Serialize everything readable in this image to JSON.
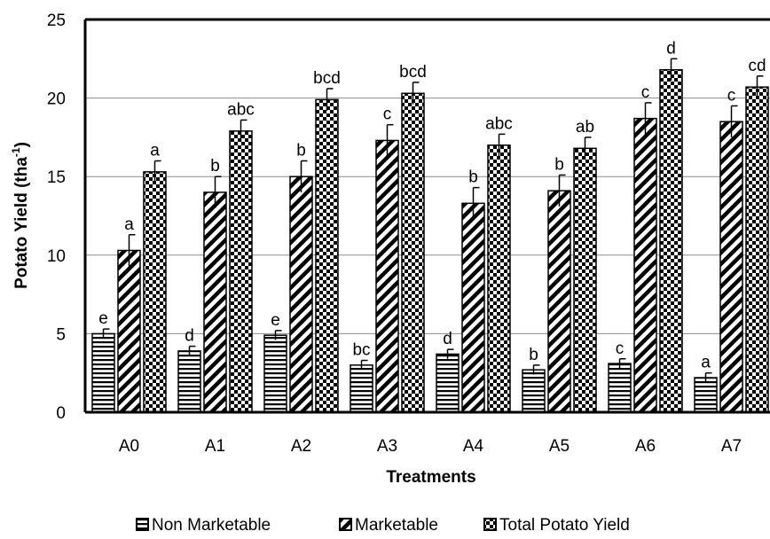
{
  "chart_data": {
    "type": "bar",
    "title": "",
    "xlabel": "Treatments",
    "ylabel": "Potato Yield (tha",
    "ylabel_sup": "-1",
    "ylabel_close": ")",
    "ylim": [
      0,
      25
    ],
    "yticks": [
      "0",
      "5",
      "10",
      "15",
      "20",
      "25"
    ],
    "categories": [
      "A0",
      "A1",
      "A2",
      "A3",
      "A4",
      "A5",
      "A6",
      "A7"
    ],
    "grid": "horizontal",
    "legend_position": "bottom",
    "series": [
      {
        "name": "Non Marketable",
        "pattern": "horizontal-lines",
        "values": [
          5.0,
          3.9,
          4.9,
          3.0,
          3.7,
          2.7,
          3.1,
          2.2
        ],
        "errors": [
          0.3,
          0.3,
          0.3,
          0.3,
          0.3,
          0.3,
          0.3,
          0.3
        ],
        "letters": [
          "e",
          "d",
          "e",
          "bc",
          "d",
          "b",
          "c",
          "a"
        ]
      },
      {
        "name": "Marketable",
        "pattern": "diagonal-stripes",
        "values": [
          10.3,
          14.0,
          15.0,
          17.3,
          13.3,
          14.1,
          18.7,
          18.5
        ],
        "errors": [
          1.0,
          1.0,
          1.0,
          1.0,
          1.0,
          1.0,
          1.0,
          1.0
        ],
        "letters": [
          "a",
          "b",
          "b",
          "c",
          "b",
          "b",
          "c",
          "c"
        ]
      },
      {
        "name": "Total Potato Yield",
        "pattern": "checkerboard",
        "values": [
          15.3,
          17.9,
          19.9,
          20.3,
          17.0,
          16.8,
          21.8,
          20.7
        ],
        "errors": [
          0.7,
          0.7,
          0.7,
          0.7,
          0.7,
          0.7,
          0.7,
          0.7
        ],
        "letters": [
          "a",
          "abc",
          "bcd",
          "bcd",
          "abc",
          "ab",
          "d",
          "cd"
        ]
      }
    ]
  }
}
